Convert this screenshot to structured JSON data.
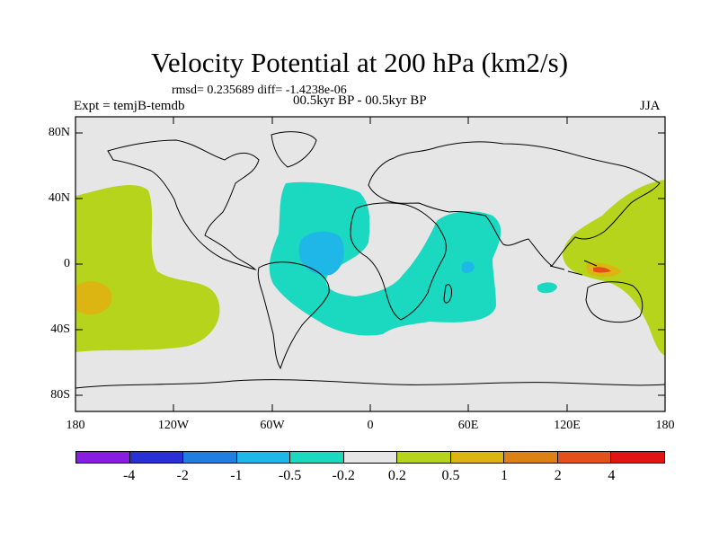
{
  "title": "Velocity Potential at 200 hPa (km2/s)",
  "stats": "rmsd= 0.235689 diff= -1.4238e-06",
  "expt_label": "Expt = temjB-temdb",
  "period": "00.5kyr BP - 00.5kyr BP",
  "season": "JJA",
  "lat_labels": [
    "80N",
    "40N",
    "0",
    "40S",
    "80S"
  ],
  "lon_labels": [
    "180",
    "120W",
    "60W",
    "0",
    "60E",
    "120E",
    "180"
  ],
  "colorbar": {
    "colors": [
      "#8a1ee0",
      "#2a2fd6",
      "#1f7fe0",
      "#1fb6e8",
      "#1ad9c0",
      "#e6e6e6",
      "#b7d41c",
      "#dcb512",
      "#dc8214",
      "#e3501c",
      "#e01414"
    ],
    "labels": [
      "-4",
      "-2",
      "-1",
      "-0.5",
      "-0.2",
      "0.2",
      "0.5",
      "1",
      "2",
      "4"
    ]
  },
  "colors": {
    "background_field": "#e6e6e6",
    "coastline": "#000000"
  }
}
